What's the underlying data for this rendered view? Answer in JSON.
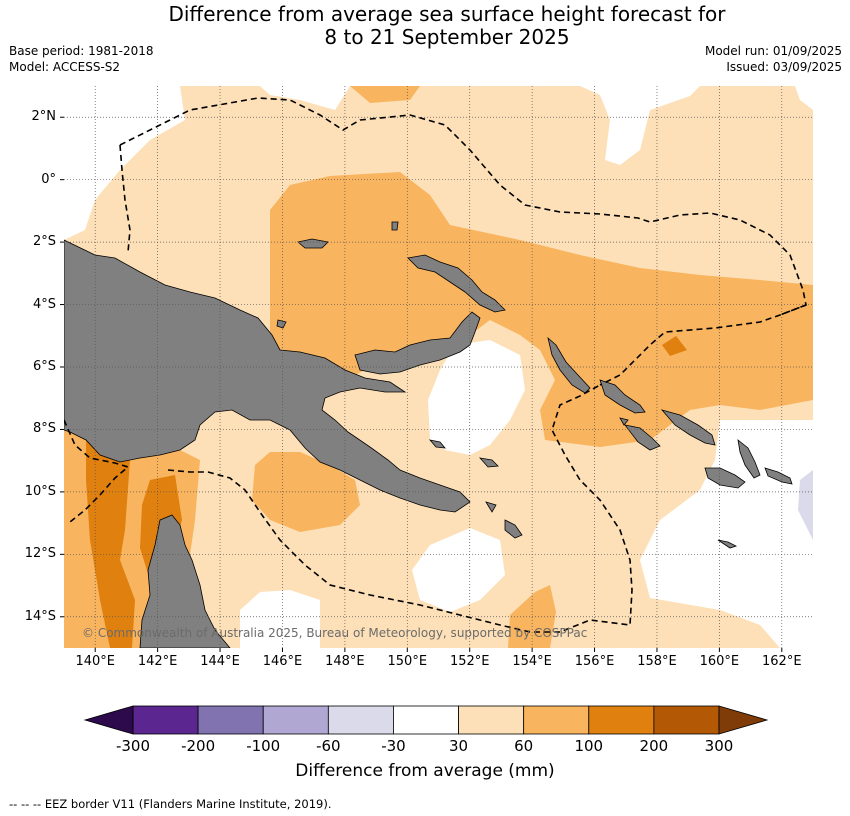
{
  "title_line1": "Difference from average sea surface height forecast for",
  "title_line2": "8 to 21 September 2025",
  "meta_left": [
    "Base period: 1981-2018",
    "Model: ACCESS-S2"
  ],
  "meta_right": [
    "Model run: 01/09/2025",
    "Issued: 03/09/2025"
  ],
  "map": {
    "lon_range": [
      139,
      163
    ],
    "lat_range": [
      -15,
      3
    ],
    "lat_ticks": [
      {
        "value": 2,
        "label": "2°N"
      },
      {
        "value": 0,
        "label": "0°"
      },
      {
        "value": -2,
        "label": "2°S"
      },
      {
        "value": -4,
        "label": "4°S"
      },
      {
        "value": -6,
        "label": "6°S"
      },
      {
        "value": -8,
        "label": "8°S"
      },
      {
        "value": -10,
        "label": "10°S"
      },
      {
        "value": -12,
        "label": "12°S"
      },
      {
        "value": -14,
        "label": "14°S"
      }
    ],
    "lon_ticks": [
      {
        "value": 140,
        "label": "140°E"
      },
      {
        "value": 142,
        "label": "142°E"
      },
      {
        "value": 144,
        "label": "144°E"
      },
      {
        "value": 146,
        "label": "146°E"
      },
      {
        "value": 148,
        "label": "148°E"
      },
      {
        "value": 150,
        "label": "150°E"
      },
      {
        "value": 152,
        "label": "152°E"
      },
      {
        "value": 154,
        "label": "154°E"
      },
      {
        "value": 156,
        "label": "156°E"
      },
      {
        "value": 158,
        "label": "158°E"
      },
      {
        "value": 160,
        "label": "160°E"
      },
      {
        "value": 162,
        "label": "162°E"
      }
    ],
    "grid": true,
    "land_color": "#808080",
    "copyright": "© Commonwealth of Australia 2025, Bureau of Meteorology, supported by COSPPac"
  },
  "colorbar": {
    "label": "Difference from average (mm)",
    "boundaries": [
      "-300",
      "-200",
      "-100",
      "-60",
      "-30",
      "30",
      "60",
      "100",
      "200",
      "300"
    ],
    "colors": [
      "#5b2690",
      "#8073b0",
      "#b0a8d2",
      "#dadaea",
      "#ffffff",
      "#fde0b7",
      "#f9b45f",
      "#e0800f",
      "#b35805"
    ],
    "extend_low_color": "#2d0a4b",
    "extend_high_color": "#7f3b08"
  },
  "footnote": "--  --  -- EEZ border V11 (Flanders Marine Institute, 2019)."
}
